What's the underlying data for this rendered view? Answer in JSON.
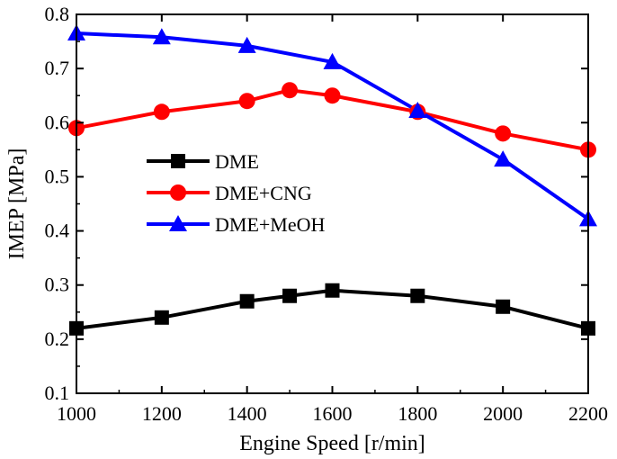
{
  "chart_data": {
    "type": "line",
    "title": "",
    "xlabel": "Engine Speed [r/min]",
    "ylabel": "IMEP [MPa]",
    "xlim": [
      1000,
      2200
    ],
    "ylim": [
      0.1,
      0.8
    ],
    "xticks": [
      1000,
      1200,
      1400,
      1600,
      1800,
      2000,
      2200
    ],
    "yticks": [
      0.1,
      0.2,
      0.3,
      0.4,
      0.5,
      0.6,
      0.7,
      0.8
    ],
    "xtick_labels": [
      "1000",
      "1200",
      "1400",
      "1600",
      "1800",
      "2000",
      "2200"
    ],
    "ytick_labels": [
      "0.1",
      "0.2",
      "0.3",
      "0.4",
      "0.5",
      "0.6",
      "0.7",
      "0.8"
    ],
    "grid": false,
    "legend_position": "center-left",
    "series": [
      {
        "name": "DME",
        "color": "#000000",
        "marker": "square",
        "x": [
          1000,
          1200,
          1400,
          1500,
          1600,
          1800,
          2000,
          2200
        ],
        "y": [
          0.22,
          0.24,
          0.27,
          0.28,
          0.29,
          0.28,
          0.26,
          0.22
        ]
      },
      {
        "name": "DME+CNG",
        "color": "#ff0000",
        "marker": "circle",
        "x": [
          1000,
          1200,
          1400,
          1500,
          1600,
          1800,
          2000,
          2200
        ],
        "y": [
          0.59,
          0.62,
          0.64,
          0.66,
          0.65,
          0.62,
          0.58,
          0.55
        ]
      },
      {
        "name": "DME+MeOH",
        "color": "#0000ff",
        "marker": "triangle",
        "x": [
          1000,
          1200,
          1400,
          1600,
          1800,
          2000,
          2200
        ],
        "y": [
          0.765,
          0.758,
          0.742,
          0.712,
          0.622,
          0.532,
          0.422
        ]
      }
    ]
  }
}
